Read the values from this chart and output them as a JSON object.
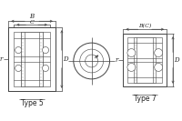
{
  "bg_color": "#ffffff",
  "line_color": "#444444",
  "dim_color": "#444444",
  "text_color": "#222222",
  "type5_label": "Type 5",
  "type7_label": "Type 7",
  "dim_B": "B",
  "dim_C": "C",
  "dim_r": "r",
  "dim_D": "D",
  "dim_BC": "B(C)",
  "figw": 2.0,
  "figh": 1.33,
  "dpi": 100
}
